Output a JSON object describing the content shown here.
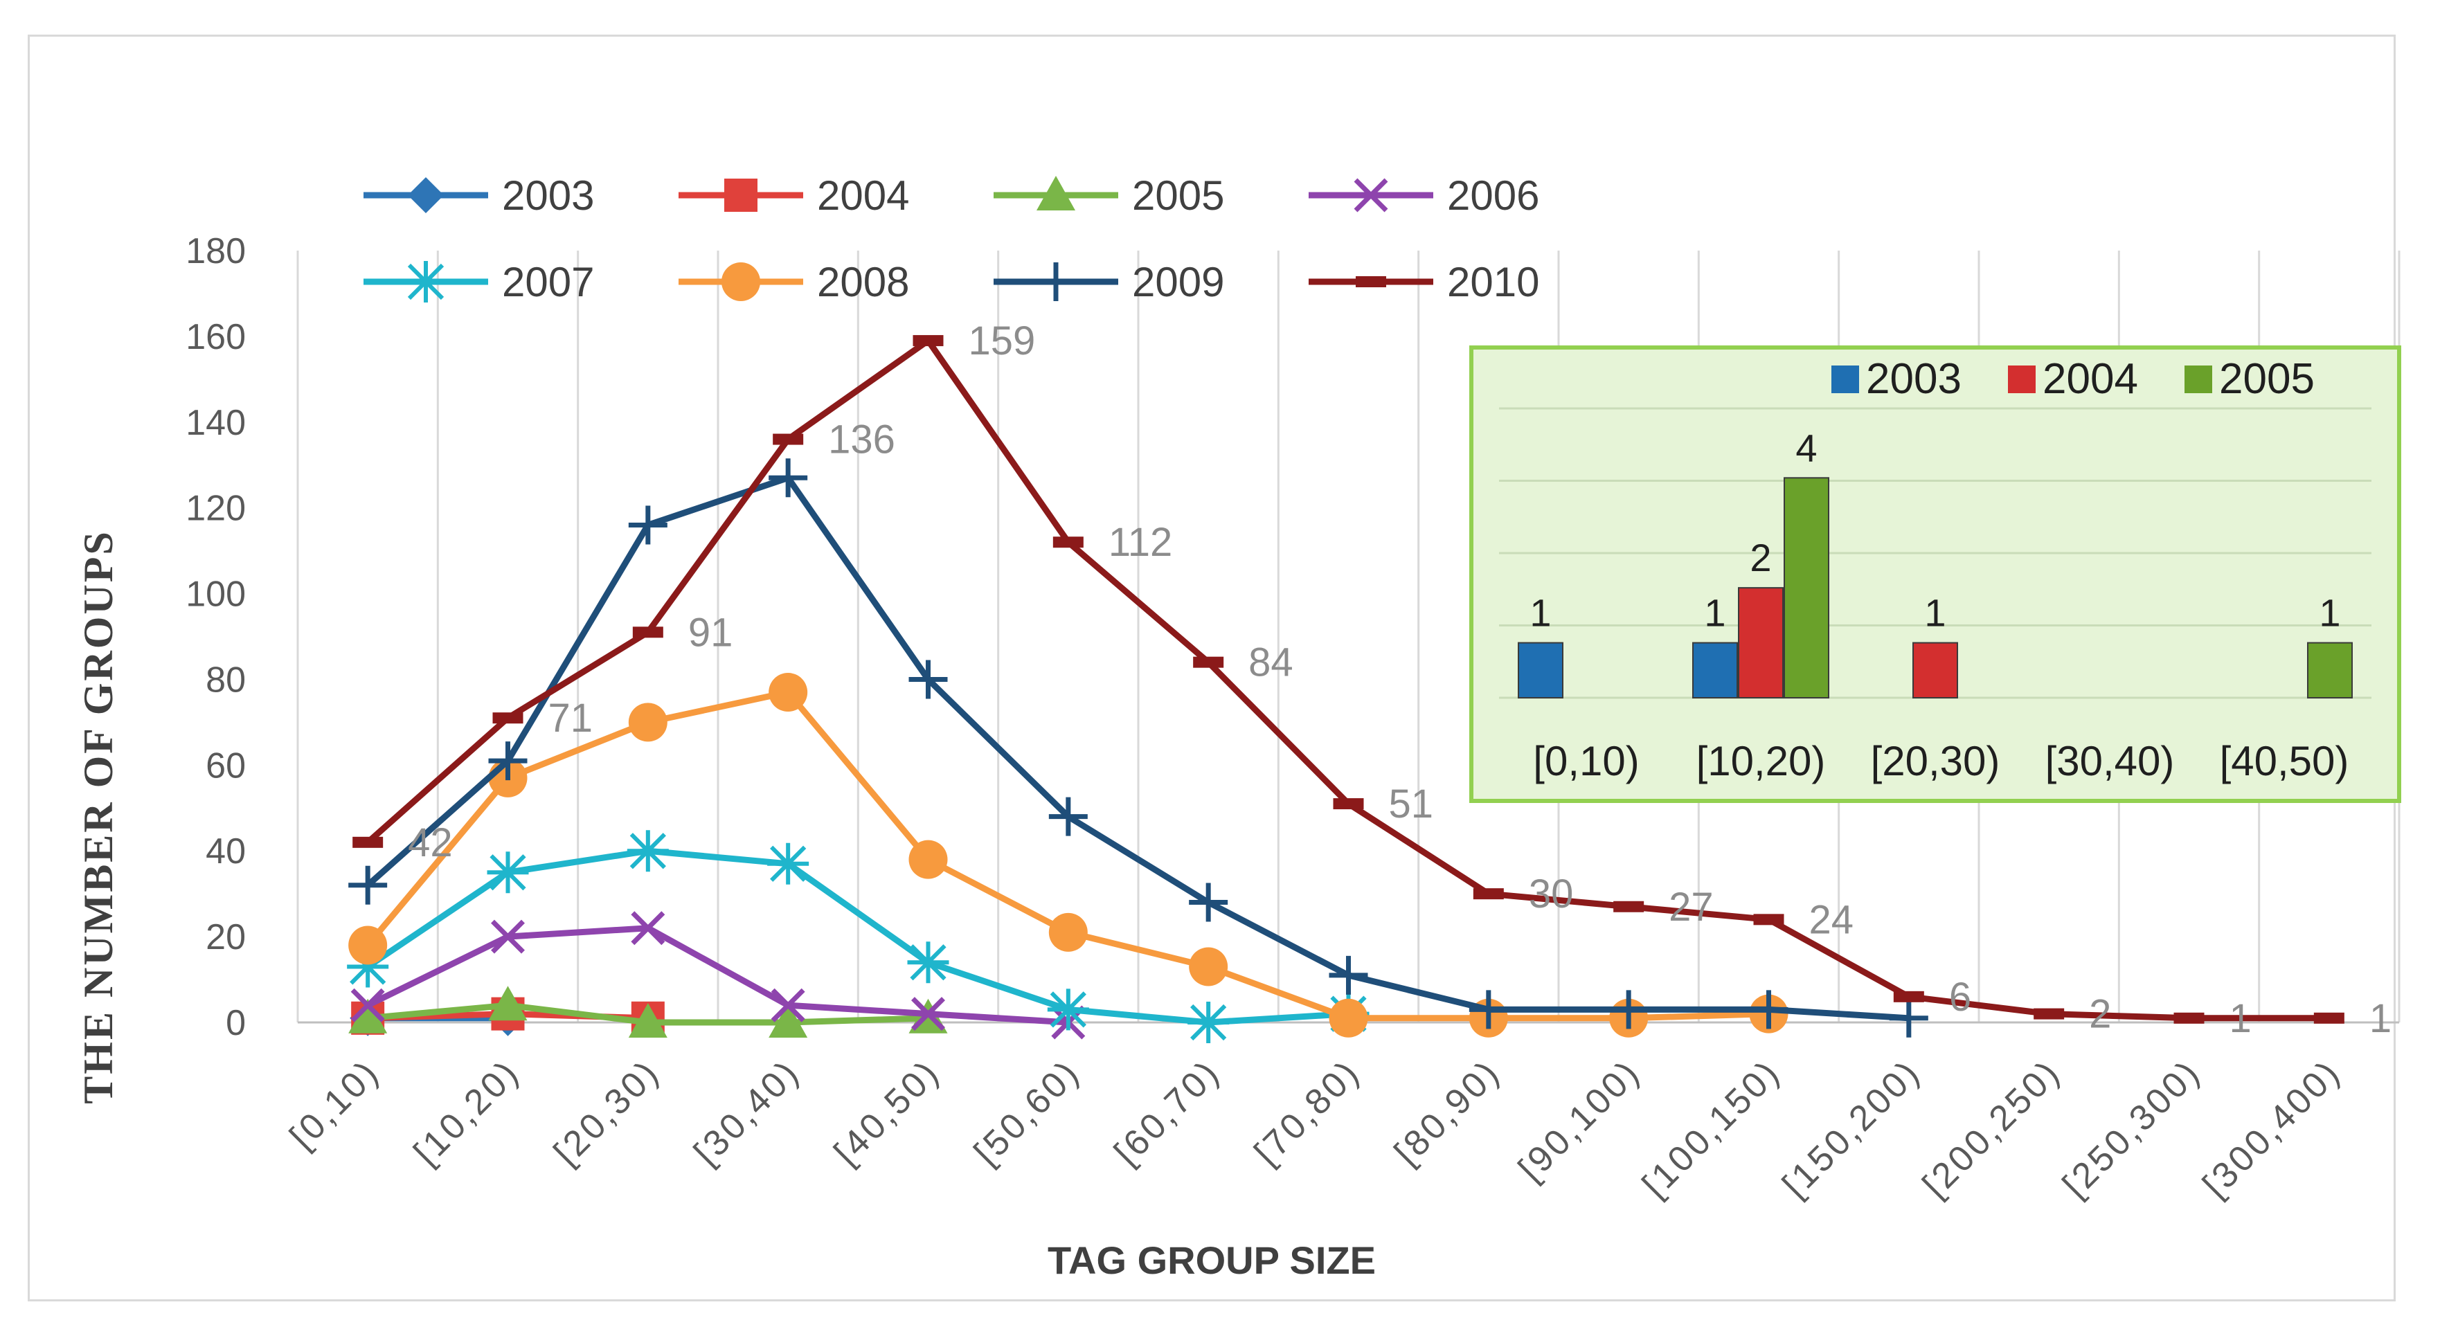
{
  "chart_data": [
    {
      "type": "line",
      "title": "",
      "xlabel": "TAG GROUP SIZE",
      "ylabel": "THE NUMBER OF GROUPS",
      "ylim": [
        0,
        180
      ],
      "yticks": [
        "0",
        "20",
        "40",
        "60",
        "80",
        "100",
        "120",
        "140",
        "160",
        "180"
      ],
      "grid": "vertical",
      "legend": "top",
      "categories": [
        "[0,10)",
        "[10,20)",
        "[20,30)",
        "[30,40)",
        "[40,50)",
        "[50,60)",
        "[60,70)",
        "[70,80)",
        "[80,90)",
        "[90,100)",
        "[100,150)",
        "[150,200)",
        "[200,250)",
        "[250,300)",
        "[300,400)"
      ],
      "series": [
        {
          "name": "2003",
          "color": "#2e75b6",
          "marker": "diamond",
          "values": [
            1,
            1,
            null,
            null,
            null,
            null,
            null,
            null,
            null,
            null,
            null,
            null,
            null,
            null,
            null
          ]
        },
        {
          "name": "2004",
          "color": "#e0413b",
          "marker": "square",
          "values": [
            1,
            2,
            1,
            null,
            null,
            null,
            null,
            null,
            null,
            null,
            null,
            null,
            null,
            null,
            null
          ]
        },
        {
          "name": "2005",
          "color": "#7ab648",
          "marker": "triangle",
          "values": [
            1,
            4,
            0,
            0,
            1,
            null,
            null,
            null,
            null,
            null,
            null,
            null,
            null,
            null,
            null
          ]
        },
        {
          "name": "2006",
          "color": "#8e44ad",
          "marker": "x",
          "values": [
            4,
            20,
            22,
            4,
            2,
            0,
            null,
            null,
            null,
            null,
            null,
            null,
            null,
            null,
            null
          ]
        },
        {
          "name": "2007",
          "color": "#1fb5cc",
          "marker": "star",
          "values": [
            13,
            35,
            40,
            37,
            14,
            3,
            0,
            2,
            null,
            null,
            null,
            null,
            null,
            null,
            null
          ]
        },
        {
          "name": "2008",
          "color": "#f79a3e",
          "marker": "circle",
          "values": [
            18,
            57,
            70,
            77,
            38,
            21,
            13,
            1,
            1,
            1,
            2,
            null,
            null,
            null,
            null
          ]
        },
        {
          "name": "2009",
          "color": "#1f4e79",
          "marker": "plus",
          "values": [
            32,
            61,
            116,
            127,
            80,
            48,
            28,
            11,
            3,
            3,
            3,
            1,
            null,
            null,
            null
          ]
        },
        {
          "name": "2010",
          "color": "#8b1a1a",
          "marker": "dash",
          "values": [
            42,
            71,
            91,
            136,
            159,
            112,
            84,
            51,
            30,
            27,
            24,
            6,
            2,
            1,
            1
          ]
        }
      ],
      "data_labels": {
        "series": "2010",
        "values": [
          "42",
          "71",
          "91",
          "136",
          "159",
          "112",
          "84",
          "51",
          "30",
          "27",
          "24",
          "6",
          "2",
          "1",
          "1"
        ]
      }
    },
    {
      "type": "bar",
      "title": "",
      "legend": "top",
      "categories": [
        "[0,10)",
        "[10,20)",
        "[20,30)",
        "[30,40)",
        "[40,50)"
      ],
      "series": [
        {
          "name": "2003",
          "color": "#1f6fb2",
          "values": [
            1,
            1,
            null,
            null,
            null
          ]
        },
        {
          "name": "2004",
          "color": "#d32f2f",
          "values": [
            null,
            2,
            1,
            null,
            null
          ]
        },
        {
          "name": "2005",
          "color": "#6aa12a",
          "values": [
            null,
            4,
            null,
            null,
            1
          ]
        }
      ],
      "data_labels": [
        {
          "category": "[0,10)",
          "series": "2003",
          "text": "1"
        },
        {
          "category": "[10,20)",
          "series": "2003",
          "text": "1"
        },
        {
          "category": "[10,20)",
          "series": "2004",
          "text": "2"
        },
        {
          "category": "[10,20)",
          "series": "2005",
          "text": "4"
        },
        {
          "category": "[20,30)",
          "series": "2004",
          "text": "1"
        },
        {
          "category": "[40,50)",
          "series": "2005",
          "text": "1"
        }
      ],
      "background": "#e6f4d7",
      "border": "#92d050"
    }
  ]
}
